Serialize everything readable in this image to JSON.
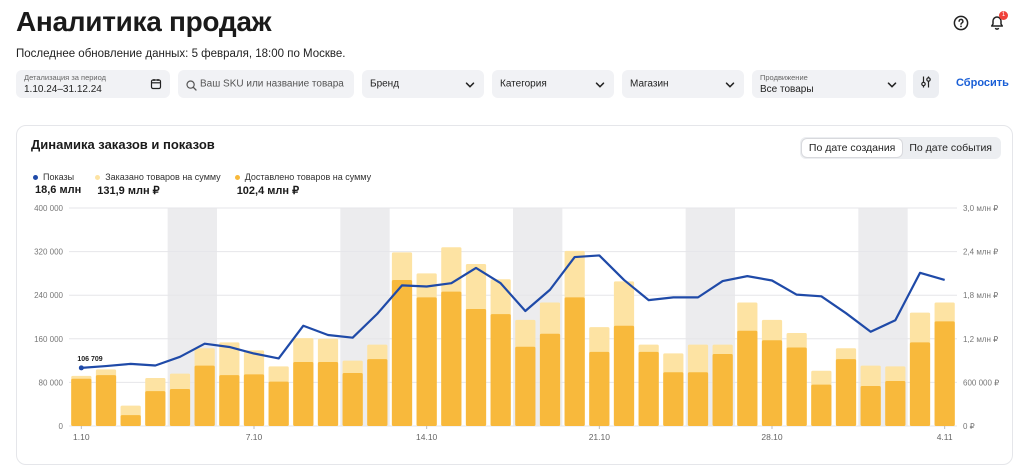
{
  "page": {
    "title": "Аналитика продаж",
    "update_note": "Последнее обновление данных: 5 февраля, 18:00 по Москве."
  },
  "header_icons": {
    "help": "help-circle-icon",
    "notifications": "bell-icon",
    "notifications_count": "1"
  },
  "filters": {
    "period": {
      "caption": "Детализация за период",
      "value": "1.10.24–31.12.24",
      "icon": "calendar-icon"
    },
    "search": {
      "placeholder": "Ваш SKU или название товара",
      "icon": "search-icon"
    },
    "brand": {
      "label": "Бренд"
    },
    "category": {
      "label": "Категория"
    },
    "store": {
      "label": "Магазин"
    },
    "promotion": {
      "caption": "Продвижение",
      "value": "Все товары"
    },
    "settings_icon": "sliders-icon",
    "reset_label": "Сбросить"
  },
  "card": {
    "title": "Динамика заказов и показов",
    "toggle": [
      {
        "label": "По дате создания",
        "active": true
      },
      {
        "label": "По дате события",
        "active": false
      }
    ],
    "legend": [
      {
        "label": "Показы",
        "value": "18,6 млн",
        "color": "#1f4aa8"
      },
      {
        "label": "Заказано товаров на сумму",
        "value": "131,9 млн ₽",
        "color": "#fde3a3"
      },
      {
        "label": "Доставлено товаров на сумму",
        "value": "102,4 млн ₽",
        "color": "#f8b93c"
      }
    ]
  },
  "chart_data": {
    "type": "bar",
    "x_tick_labels": [
      "1.10",
      "7.10",
      "14.10",
      "21.10",
      "28.10",
      "4.11"
    ],
    "y_left_ticks": [
      "0",
      "80 000",
      "160 000",
      "240 000",
      "320 000",
      "400 000"
    ],
    "y_right_ticks": [
      "0 ₽",
      "600 000 ₽",
      "1,2 млн ₽",
      "1,8 млн ₽",
      "2,4 млн ₽",
      "3,0 млн ₽"
    ],
    "y_left_lim": [
      0,
      400000
    ],
    "y_right_lim": [
      0,
      3000000
    ],
    "first_point_label": "106 709",
    "colors": {
      "ordered": "#fde3a3",
      "delivered": "#f8b93c",
      "line": "#1f4aa8",
      "weekend": "#ececee"
    },
    "grid": true,
    "series": [
      {
        "name": "Заказано товаров на сумму",
        "axis": "right",
        "values": [
          690000,
          780000,
          280000,
          660000,
          720000,
          1070000,
          1150000,
          1040000,
          820000,
          1210000,
          1200000,
          900000,
          1120000,
          2390000,
          2100000,
          2460000,
          2230000,
          2020000,
          1460000,
          1700000,
          2410000,
          1360000,
          1990000,
          1120000,
          1000000,
          1120000,
          1120000,
          1700000,
          1460000,
          1280000,
          760000,
          1070000,
          830000,
          820000,
          1560000,
          1700000
        ]
      },
      {
        "name": "Доставлено товаров на сумму",
        "axis": "right",
        "values": [
          650000,
          700000,
          150000,
          480000,
          510000,
          830000,
          700000,
          710000,
          610000,
          880000,
          880000,
          730000,
          920000,
          2010000,
          1770000,
          1850000,
          1610000,
          1540000,
          1090000,
          1270000,
          1770000,
          1020000,
          1380000,
          1020000,
          740000,
          740000,
          990000,
          1310000,
          1180000,
          1080000,
          570000,
          920000,
          550000,
          620000,
          1150000,
          1440000
        ]
      },
      {
        "name": "Показы",
        "axis": "left",
        "values": [
          106709,
          110000,
          114000,
          111000,
          127000,
          151000,
          145000,
          133000,
          124000,
          184000,
          167000,
          162000,
          206000,
          258000,
          256000,
          262000,
          290000,
          262000,
          211000,
          250000,
          310000,
          313000,
          268000,
          231000,
          236000,
          236000,
          266000,
          275000,
          267000,
          241000,
          238000,
          207000,
          173000,
          194000,
          281000,
          268000
        ]
      }
    ]
  }
}
